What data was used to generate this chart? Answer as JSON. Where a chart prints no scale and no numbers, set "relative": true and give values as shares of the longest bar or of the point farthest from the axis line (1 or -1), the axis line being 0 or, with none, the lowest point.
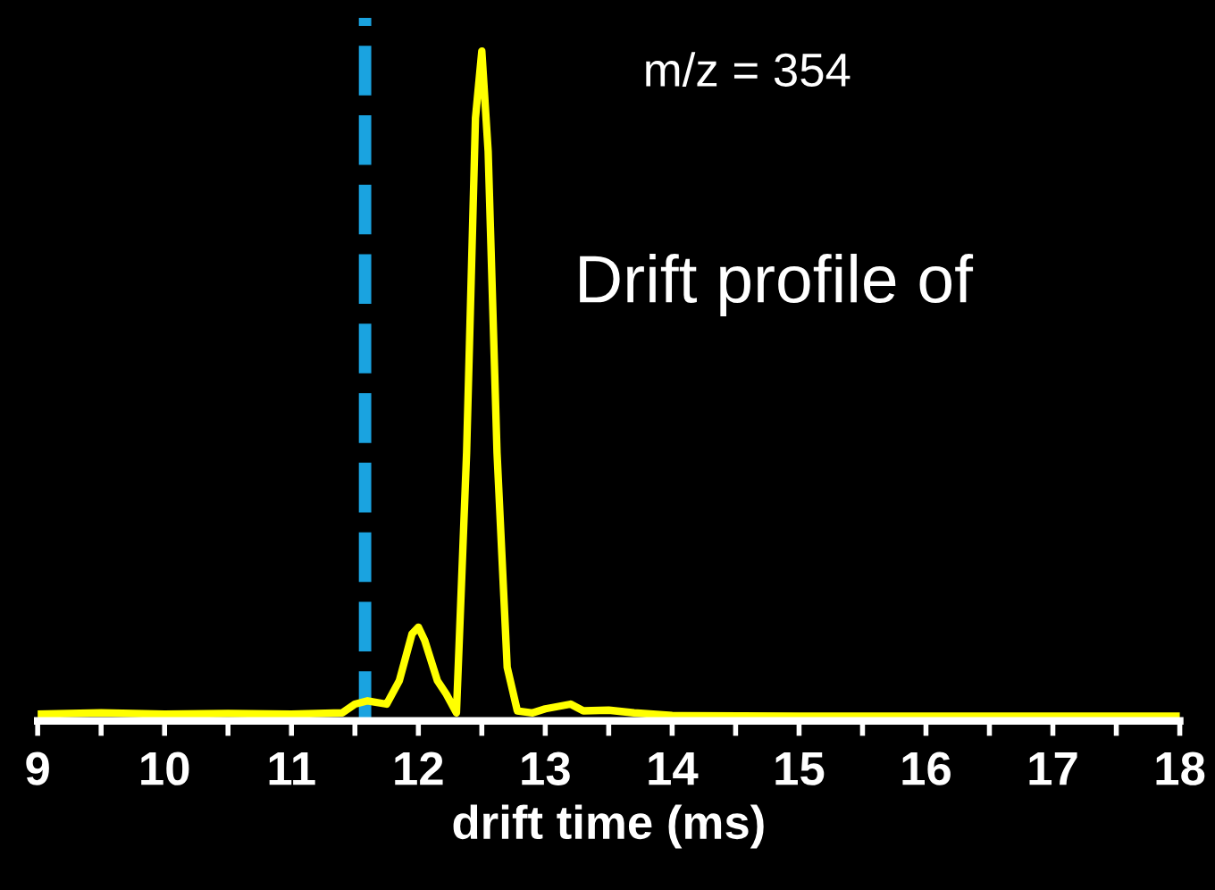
{
  "chart_data": {
    "type": "line",
    "relative": true,
    "xlabel": "drift time (ms)",
    "x": [
      9,
      9.5,
      10,
      10.5,
      11,
      11.4,
      11.5,
      11.6,
      11.75,
      11.85,
      11.95,
      12.0,
      12.05,
      12.15,
      12.22,
      12.3,
      12.38,
      12.45,
      12.5,
      12.55,
      12.62,
      12.7,
      12.78,
      12.9,
      13.0,
      13.2,
      13.3,
      13.5,
      13.7,
      14,
      15,
      16,
      17,
      18
    ],
    "series": [
      {
        "color": "#ffff00",
        "values": [
          0.01,
          0.012,
          0.01,
          0.011,
          0.01,
          0.012,
          0.025,
          0.03,
          0.025,
          0.06,
          0.13,
          0.14,
          0.12,
          0.06,
          0.04,
          0.012,
          0.4,
          0.9,
          1.0,
          0.85,
          0.4,
          0.08,
          0.015,
          0.012,
          0.018,
          0.025,
          0.015,
          0.016,
          0.012,
          0.008,
          0.007,
          0.007,
          0.007,
          0.007
        ]
      }
    ],
    "xlim": [
      9,
      18
    ],
    "xticks": [
      9,
      {
        "value": 9.5,
        "label": null
      },
      10,
      {
        "value": 10.5,
        "label": null
      },
      11,
      {
        "value": 11.5,
        "label": null
      },
      12,
      {
        "value": 12.5,
        "label": null
      },
      13,
      {
        "value": 13.5,
        "label": null
      },
      14,
      {
        "value": 14.5,
        "label": null
      },
      15,
      {
        "value": 15.5,
        "label": null
      },
      16,
      {
        "value": 16.5,
        "label": null
      },
      17,
      {
        "value": 17.5,
        "label": null
      },
      18
    ],
    "tick_labels": "x",
    "grid": false,
    "legend": false,
    "line_style": "solid",
    "marker": "none",
    "ref_lines": [
      {
        "axis": "x",
        "value": 11.58,
        "color": "#1aa3e0",
        "line_style": "dashed"
      }
    ],
    "annotations": [
      "m/z = 354",
      "Drift profile of"
    ]
  }
}
